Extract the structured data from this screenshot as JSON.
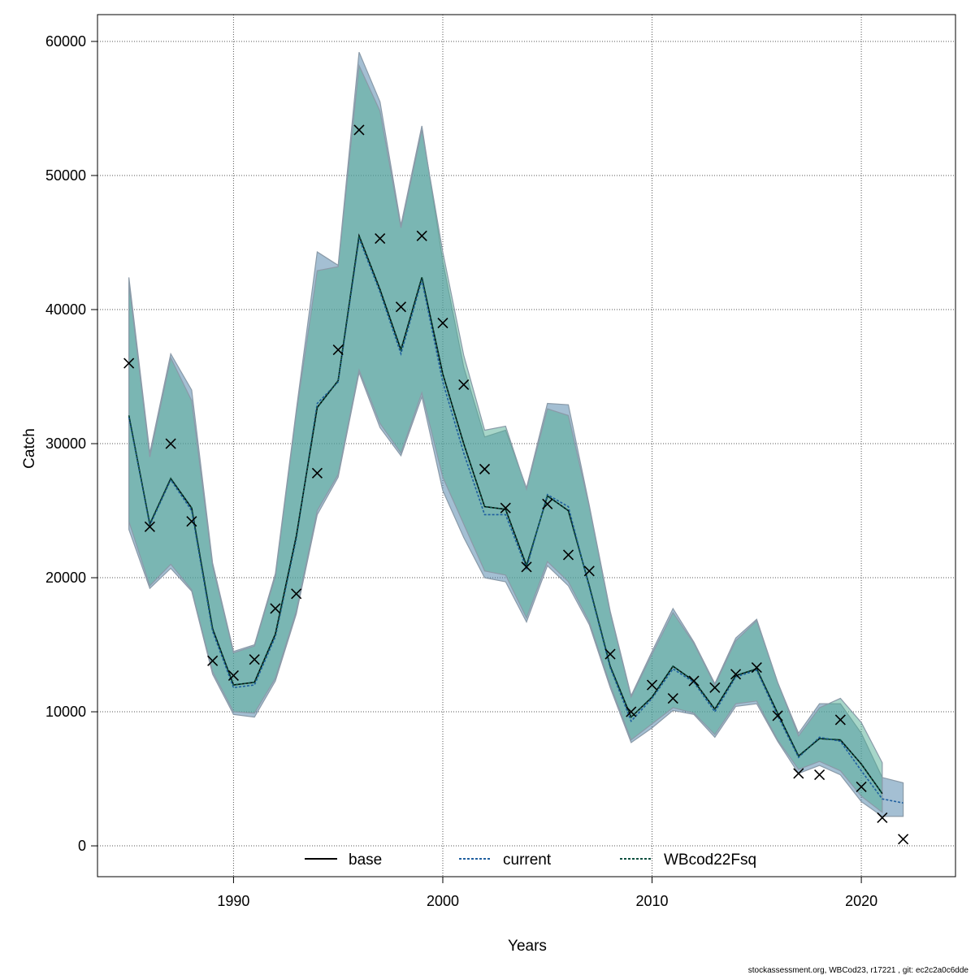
{
  "chart_data": {
    "type": "line",
    "title": "",
    "xlabel": "Years",
    "ylabel": "Catch",
    "xlim": [
      1983.5,
      2024.5
    ],
    "ylim": [
      -2300,
      62000
    ],
    "xticks": [
      1990,
      2000,
      2010,
      2020
    ],
    "yticks": [
      0,
      10000,
      20000,
      30000,
      40000,
      50000,
      60000
    ],
    "xtick_labels": [
      "1990",
      "2000",
      "2010",
      "2020"
    ],
    "ytick_labels": [
      "0",
      "10000",
      "20000",
      "30000",
      "40000",
      "50000",
      "60000"
    ],
    "grid": true,
    "legend_position": "bottom-center",
    "years": [
      1985,
      1986,
      1987,
      1988,
      1989,
      1990,
      1991,
      1992,
      1993,
      1994,
      1995,
      1996,
      1997,
      1998,
      1999,
      2000,
      2001,
      2002,
      2003,
      2004,
      2005,
      2006,
      2007,
      2008,
      2009,
      2010,
      2011,
      2012,
      2013,
      2014,
      2015,
      2016,
      2017,
      2018,
      2019,
      2020,
      2021,
      2022
    ],
    "observed": {
      "name": "observed catch",
      "values": [
        36000,
        23800,
        30000,
        24200,
        13800,
        12700,
        13900,
        17700,
        18800,
        27800,
        37000,
        53400,
        45300,
        40200,
        45500,
        39000,
        34400,
        28100,
        25200,
        20800,
        25500,
        21700,
        20500,
        14300,
        10000,
        12000,
        11000,
        12300,
        11800,
        12800,
        13300,
        9700,
        5400,
        5300,
        9400,
        4400,
        2100,
        500
      ]
    },
    "series": [
      {
        "name": "base",
        "color": "#000000",
        "dash": "solid",
        "values": [
          32100,
          24000,
          27400,
          25200,
          16200,
          12000,
          12200,
          15800,
          23100,
          32700,
          34700,
          45500,
          41500,
          37000,
          42400,
          35200,
          30000,
          25300,
          25100,
          20900,
          26100,
          25000,
          19400,
          13400,
          9600,
          11100,
          13400,
          12300,
          10200,
          12700,
          13200,
          9900,
          6700,
          8000,
          7900,
          6100,
          3900,
          null
        ],
        "upper": [
          42400,
          29300,
          36700,
          34000,
          21100,
          14500,
          15000,
          20300,
          32500,
          44300,
          43300,
          59200,
          55500,
          46300,
          53700,
          44000,
          36300,
          31000,
          31200,
          26700,
          33000,
          33000,
          25500,
          17500,
          11200,
          14500,
          17800,
          15200,
          12100,
          15500,
          16900,
          12200,
          8400,
          10600,
          10900,
          9000,
          6000,
          null
        ],
        "lower": [
          23600,
          19200,
          20700,
          19000,
          12800,
          9800,
          9600,
          12300,
          17300,
          24700,
          27500,
          35300,
          31200,
          29100,
          33500,
          26800,
          23500,
          20100,
          19800,
          16700,
          20900,
          19400,
          16500,
          11800,
          7700,
          8800,
          10100,
          9800,
          8100,
          10400,
          10600,
          7800,
          5500,
          6000,
          5300,
          3400,
          2200,
          null
        ]
      },
      {
        "name": "current",
        "color": "#1f5f9f",
        "dash": "dotted",
        "values": [
          32000,
          23900,
          27300,
          25000,
          16000,
          11800,
          12000,
          15600,
          22900,
          33000,
          34600,
          45300,
          41300,
          36700,
          42200,
          34600,
          29300,
          24700,
          24700,
          20700,
          26200,
          25300,
          19300,
          13300,
          9300,
          11000,
          13200,
          12200,
          10000,
          12600,
          13100,
          9700,
          6600,
          8100,
          7800,
          5600,
          3500,
          3200
        ],
        "upper": [
          42400,
          29300,
          36700,
          34000,
          21100,
          14500,
          15000,
          20300,
          32500,
          44300,
          43300,
          59200,
          55500,
          46300,
          53700,
          43600,
          35700,
          30500,
          31000,
          26700,
          33000,
          32900,
          25400,
          17500,
          11200,
          14500,
          17700,
          15200,
          12100,
          15500,
          16900,
          12200,
          8400,
          10600,
          10600,
          8400,
          5100,
          4700
        ],
        "lower": [
          23600,
          19200,
          20700,
          19000,
          12800,
          9800,
          9600,
          12300,
          17300,
          24700,
          27500,
          35300,
          31200,
          29100,
          33500,
          26500,
          23000,
          20000,
          19700,
          16700,
          20900,
          19400,
          16500,
          11800,
          7700,
          8800,
          10100,
          9800,
          8100,
          10400,
          10600,
          7800,
          5400,
          6000,
          5300,
          3300,
          2200,
          2200
        ]
      },
      {
        "name": "WBcod22Fsq",
        "color": "#0b4f3f",
        "dash": "dotted",
        "values": [
          32100,
          24000,
          27400,
          25200,
          16200,
          12000,
          12200,
          15800,
          23100,
          32700,
          34700,
          45500,
          41500,
          37000,
          42400,
          35200,
          30000,
          25300,
          25100,
          20900,
          26100,
          25000,
          19400,
          13400,
          9600,
          11100,
          13400,
          12300,
          10200,
          12700,
          13200,
          9900,
          6700,
          8000,
          7900,
          6100,
          3900,
          null
        ],
        "upper": [
          42000,
          29000,
          36400,
          33200,
          20900,
          14400,
          14900,
          20100,
          32300,
          42900,
          43200,
          58200,
          54800,
          46100,
          53400,
          44300,
          36600,
          31000,
          31300,
          26600,
          32600,
          32100,
          25300,
          17400,
          11100,
          14300,
          17400,
          15100,
          12000,
          15300,
          16800,
          12200,
          8200,
          10300,
          11000,
          9200,
          6200,
          null
        ],
        "lower": [
          24200,
          19400,
          21000,
          19100,
          13000,
          10000,
          9900,
          12500,
          17500,
          25000,
          27700,
          35500,
          31500,
          29300,
          33800,
          27500,
          24000,
          20500,
          20200,
          17000,
          21200,
          19700,
          16700,
          12000,
          7900,
          9100,
          10300,
          9900,
          8300,
          10600,
          10800,
          7900,
          5700,
          6300,
          5600,
          3700,
          2500,
          null
        ]
      }
    ],
    "band_colors": [
      "#4a7fa8",
      "#4fae93"
    ],
    "legend": [
      "base",
      "current",
      "WBcod22Fsq"
    ]
  },
  "footer": "stockassessment.org, WBCod23, r17221 , git: ec2c2a0c6dde"
}
